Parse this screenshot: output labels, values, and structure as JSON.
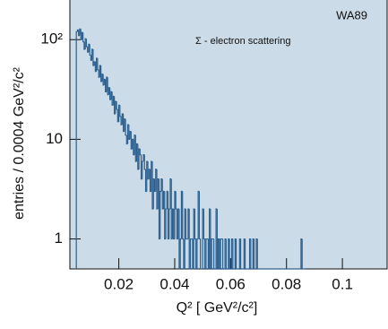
{
  "chart_data": {
    "type": "histogram",
    "annotations": [
      "WA89",
      "Σ - electron scattering"
    ],
    "x_label": "Q² [ GeV²/c²]",
    "y_label": "entries / 0.0004 GeV²/c²",
    "color": "#2b5f8f",
    "background": "#cbdbe7",
    "log_y": true,
    "bins": [
      0.0048,
      0.0052,
      0.0056,
      0.006,
      0.0064,
      0.0068,
      0.0072,
      0.0076,
      0.008,
      0.0084,
      0.0088,
      0.0092,
      0.0096,
      0.01,
      0.0104,
      0.0108,
      0.0112,
      0.0116,
      0.012,
      0.0124,
      0.0128,
      0.0132,
      0.0136,
      0.014,
      0.0144,
      0.0148,
      0.0152,
      0.0156,
      0.016,
      0.0164,
      0.0168,
      0.0172,
      0.0176,
      0.018,
      0.0184,
      0.0188,
      0.0192,
      0.0196,
      0.02,
      0.0204,
      0.0208,
      0.0212,
      0.0216,
      0.022,
      0.0224,
      0.0228,
      0.0232,
      0.0236,
      0.024,
      0.0244,
      0.0248,
      0.0252,
      0.0256,
      0.026,
      0.0264,
      0.0268,
      0.0272,
      0.0276,
      0.028,
      0.0284,
      0.0288,
      0.0292,
      0.0296,
      0.03,
      0.0304,
      0.0308,
      0.0312,
      0.0316,
      0.032,
      0.0324,
      0.0328,
      0.0332,
      0.0336,
      0.034,
      0.0344,
      0.0348,
      0.0352,
      0.0356,
      0.036,
      0.0364,
      0.0368,
      0.0372,
      0.0376,
      0.038,
      0.0384,
      0.0388,
      0.0392,
      0.0396,
      0.04,
      0.0404,
      0.0408,
      0.0412,
      0.0416,
      0.042,
      0.0424,
      0.0428,
      0.0432,
      0.0436,
      0.044,
      0.0444,
      0.0448,
      0.0452,
      0.0456,
      0.046,
      0.0464,
      0.0468,
      0.0472,
      0.0476,
      0.048,
      0.0484,
      0.0488,
      0.0492,
      0.0496,
      0.05,
      0.0504,
      0.0508,
      0.0512,
      0.0516,
      0.052,
      0.0524,
      0.0528,
      0.0532,
      0.0536,
      0.054,
      0.0544,
      0.0548,
      0.0552,
      0.0556,
      0.056,
      0.0564,
      0.0568,
      0.0572,
      0.0576,
      0.058,
      0.0584,
      0.0588,
      0.0592,
      0.0596,
      0.06,
      0.0604,
      0.0608,
      0.0612,
      0.0616,
      0.062,
      0.0624,
      0.0628,
      0.0632,
      0.0636,
      0.064,
      0.0644,
      0.0648,
      0.0652,
      0.0656,
      0.066,
      0.0664,
      0.0668,
      0.0672,
      0.0676,
      0.068,
      0.0684,
      0.0688,
      0.0692,
      0.0696,
      0.07,
      0.0704,
      0.0708,
      0.0712,
      0.0716,
      0.072,
      0.0724,
      0.0728,
      0.0732,
      0.0736,
      0.074,
      0.0744,
      0.0748,
      0.0752,
      0.0756,
      0.076,
      0.0764,
      0.0768,
      0.0772,
      0.0776,
      0.078,
      0.0784,
      0.0788,
      0.0792,
      0.0796,
      0.08,
      0.0804,
      0.0808,
      0.0812,
      0.0816,
      0.082,
      0.0824,
      0.0828,
      0.0832,
      0.0836,
      0.084,
      0.0844,
      0.0848,
      0.0852,
      0.0856,
      0.086,
      0.0864,
      0.0868
    ],
    "values": [
      120,
      125,
      110,
      128,
      100,
      118,
      95,
      80,
      102,
      85,
      75,
      90,
      70,
      62,
      80,
      55,
      60,
      48,
      65,
      50,
      42,
      55,
      38,
      45,
      35,
      40,
      30,
      42,
      28,
      33,
      25,
      30,
      22,
      27,
      18,
      24,
      20,
      15,
      22,
      17,
      14,
      18,
      12,
      16,
      11,
      9,
      14,
      10,
      12,
      8,
      10,
      7,
      11,
      6,
      9,
      5,
      8,
      7,
      4,
      6,
      7,
      5,
      3,
      6,
      4,
      5,
      3,
      6,
      2,
      4,
      3,
      5,
      2,
      4,
      1,
      3,
      4,
      2,
      3,
      1,
      2,
      3,
      1,
      2,
      4,
      1,
      2,
      1,
      3,
      2,
      1,
      2,
      0,
      1,
      3,
      1,
      0,
      2,
      1,
      1,
      2,
      0,
      1,
      1,
      0,
      2,
      1,
      0,
      1,
      3,
      1,
      0,
      0,
      2,
      1,
      0,
      1,
      1,
      0,
      2,
      0,
      1,
      1,
      0,
      0,
      2,
      0,
      1,
      0,
      1,
      1,
      0,
      0,
      1,
      0,
      0,
      1,
      0,
      0,
      1,
      0,
      0,
      1,
      0,
      0,
      0,
      1,
      0,
      0,
      0,
      1,
      0,
      0,
      0,
      0,
      1,
      0,
      0,
      1,
      0,
      0,
      1,
      0,
      0,
      0,
      0,
      0,
      0,
      0,
      0,
      0,
      0,
      0,
      0,
      0,
      0,
      0,
      0,
      0,
      0,
      0,
      0,
      0,
      0,
      0,
      0,
      0,
      0,
      0,
      0,
      0,
      0,
      0,
      0,
      0,
      0,
      0,
      0,
      0,
      0,
      0,
      1,
      0,
      0,
      0
    ],
    "xlim": [
      0.0025,
      0.116
    ],
    "ylim": [
      0.5,
      250
    ],
    "xticks": [
      0.02,
      0.04,
      0.06,
      0.08,
      0.1
    ],
    "yticks": [
      1,
      10,
      {
        "value": 100,
        "label": "10²"
      }
    ]
  }
}
